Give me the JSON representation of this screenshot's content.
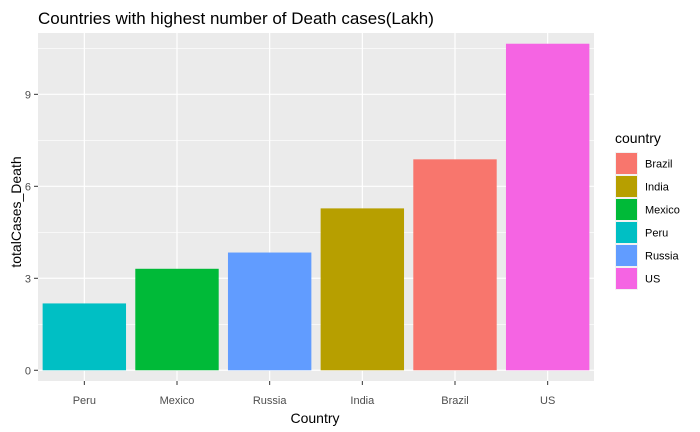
{
  "chart_data": {
    "type": "bar",
    "title": "Countries with highest number of Death cases(Lakh)",
    "xlabel": "Country",
    "ylabel": "totalCases_Death",
    "categories": [
      "Peru",
      "Mexico",
      "Russia",
      "India",
      "Brazil",
      "US"
    ],
    "values": [
      2.18,
      3.31,
      3.84,
      5.28,
      6.88,
      10.65
    ],
    "bar_colors": [
      "#00BFC4",
      "#00BA38",
      "#619CFF",
      "#B79F00",
      "#F8766D",
      "#F564E3"
    ],
    "ylim": [
      -0.35,
      11.0
    ],
    "yticks": [
      0,
      3,
      6,
      9
    ],
    "ytick_labels": [
      "0",
      "3",
      "6",
      "9"
    ],
    "grid": true,
    "panel_background": "#EBEBEB",
    "legend": {
      "title": "country",
      "placement": "right",
      "entries": [
        {
          "label": "Brazil",
          "color": "#F8766D"
        },
        {
          "label": "India",
          "color": "#B79F00"
        },
        {
          "label": "Mexico",
          "color": "#00BA38"
        },
        {
          "label": "Peru",
          "color": "#00BFC4"
        },
        {
          "label": "Russia",
          "color": "#619CFF"
        },
        {
          "label": "US",
          "color": "#F564E3"
        }
      ]
    }
  }
}
